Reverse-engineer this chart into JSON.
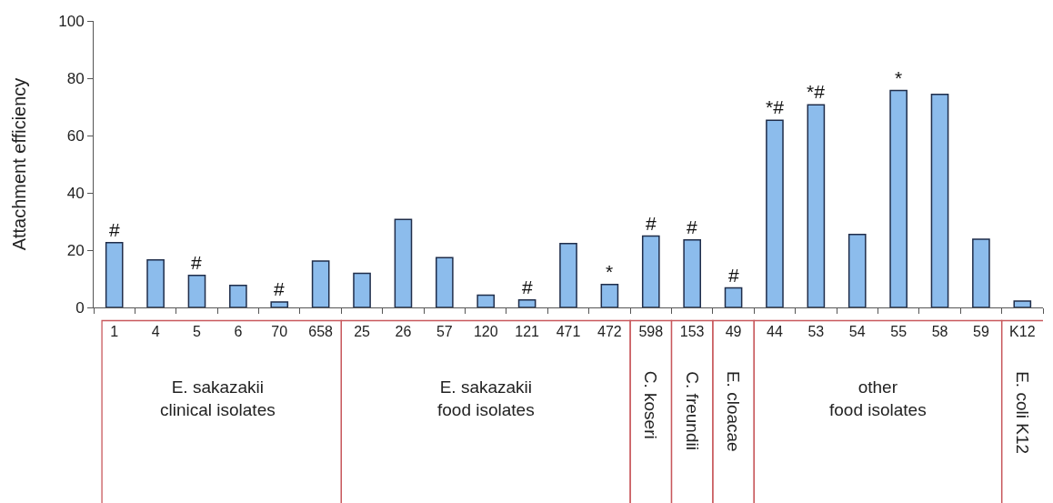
{
  "chart_data": {
    "type": "bar",
    "ylabel": "Attachment efficiency",
    "categories": [
      "1",
      "4",
      "5",
      "6",
      "70",
      "658",
      "25",
      "26",
      "57",
      "120",
      "121",
      "471",
      "472",
      "598",
      "153",
      "49",
      "44",
      "53",
      "54",
      "55",
      "58",
      "59",
      "K12"
    ],
    "values": [
      22.6,
      16.6,
      11.2,
      7.7,
      1.9,
      16.2,
      11.9,
      30.7,
      17.4,
      4.3,
      2.6,
      22.3,
      8.0,
      24.9,
      23.6,
      6.8,
      65.3,
      70.7,
      25.5,
      75.7,
      74.4,
      23.8,
      2.2
    ],
    "color": "#8cbcec",
    "ylim": [
      0,
      100
    ],
    "yticks": [
      0,
      20,
      40,
      60,
      80,
      100
    ],
    "annotations": [
      {
        "text": "#",
        "x": "1",
        "y": 22.6
      },
      {
        "text": "#",
        "x": "5",
        "y": 11.2
      },
      {
        "text": "#",
        "x": "70",
        "y": 1.9
      },
      {
        "text": "#",
        "x": "121",
        "y": 2.6
      },
      {
        "text": "*",
        "x": "472",
        "y": 8.0
      },
      {
        "text": "#",
        "x": "598",
        "y": 24.9
      },
      {
        "text": "#",
        "x": "153",
        "y": 23.6
      },
      {
        "text": "#",
        "x": "49",
        "y": 6.8
      },
      {
        "text": "*#",
        "x": "44",
        "y": 65.3
      },
      {
        "text": "*#",
        "x": "53",
        "y": 70.7
      },
      {
        "text": "*",
        "x": "55",
        "y": 75.7
      },
      "E. sakazakii\nclinical isolates",
      "E. sakazakii\nfood isolates",
      "C. koseri",
      "C. freundii",
      "E. cloacae",
      "other\nfood isolates",
      "E. coli K12"
    ]
  }
}
